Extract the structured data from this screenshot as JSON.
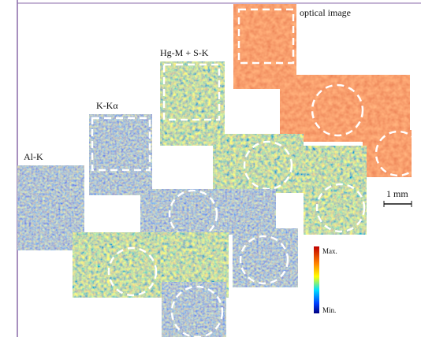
{
  "labels": {
    "optical": "optical image",
    "hg": "Hg-M + S-K",
    "k": "K-Kα",
    "al": "Al-K"
  },
  "scale_bar": "1 mm",
  "colorbar": {
    "max": "Max.",
    "min": "Min."
  }
}
